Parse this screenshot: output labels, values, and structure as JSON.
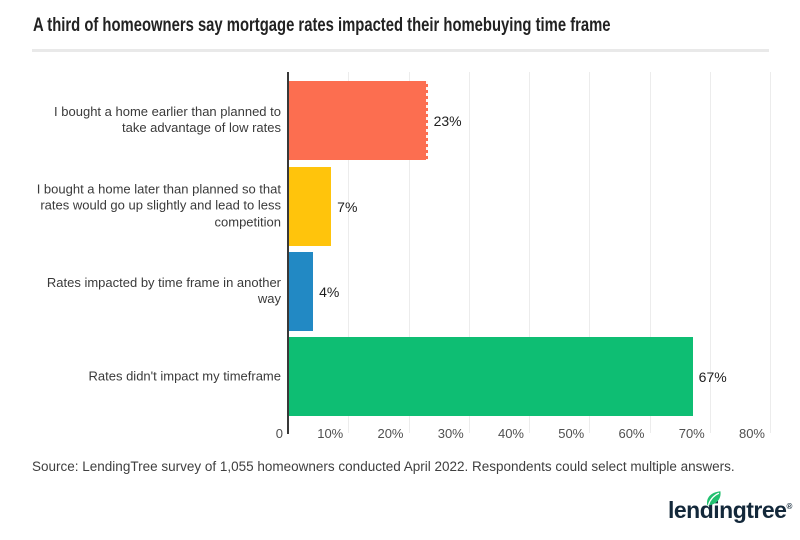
{
  "title": "A third of homeowners say mortgage rates impacted their homebuying time frame",
  "source": "Source: LendingTree survey of 1,055 homeowners conducted April 2022. Respondents could select multiple answers.",
  "logo": {
    "text": "lendingtree",
    "registered": "®",
    "text_color": "#13283a",
    "leaf_color": "#21c06f",
    "leaf_icon": "leaf-icon"
  },
  "colors": {
    "background": "#ffffff",
    "title": "#222222",
    "divider": "#e9e9e9",
    "axis_line": "#383838",
    "gridline": "#ececec",
    "category_label": "#3a3a3a",
    "tick_label": "#505050",
    "value_label": "#1e1e1e"
  },
  "chart_data": {
    "type": "bar",
    "orientation": "horizontal",
    "title": "A third of homeowners say mortgage rates impacted their homebuying time frame",
    "categories": [
      "I bought a home earlier than planned to take advantage of low rates",
      "I bought a home later than planned so that rates would go up slightly and lead to less competition",
      "Rates impacted by time frame in another way",
      "Rates didn't impact my timeframe"
    ],
    "values": [
      23,
      7,
      4,
      67
    ],
    "value_labels": [
      "23%",
      "7%",
      "4%",
      "67%"
    ],
    "bar_colors": [
      "#fc6e50",
      "#ffc40c",
      "#2289c4",
      "#0ebe73"
    ],
    "xlim": [
      0,
      80
    ],
    "tick_values": [
      0,
      10,
      20,
      30,
      40,
      50,
      60,
      70,
      80
    ],
    "tick_labels": [
      "0",
      "10%",
      "20%",
      "30%",
      "40%",
      "50%",
      "60%",
      "70%",
      "80%"
    ],
    "grid": true,
    "legend": false,
    "dotted_edge_index": 0
  }
}
